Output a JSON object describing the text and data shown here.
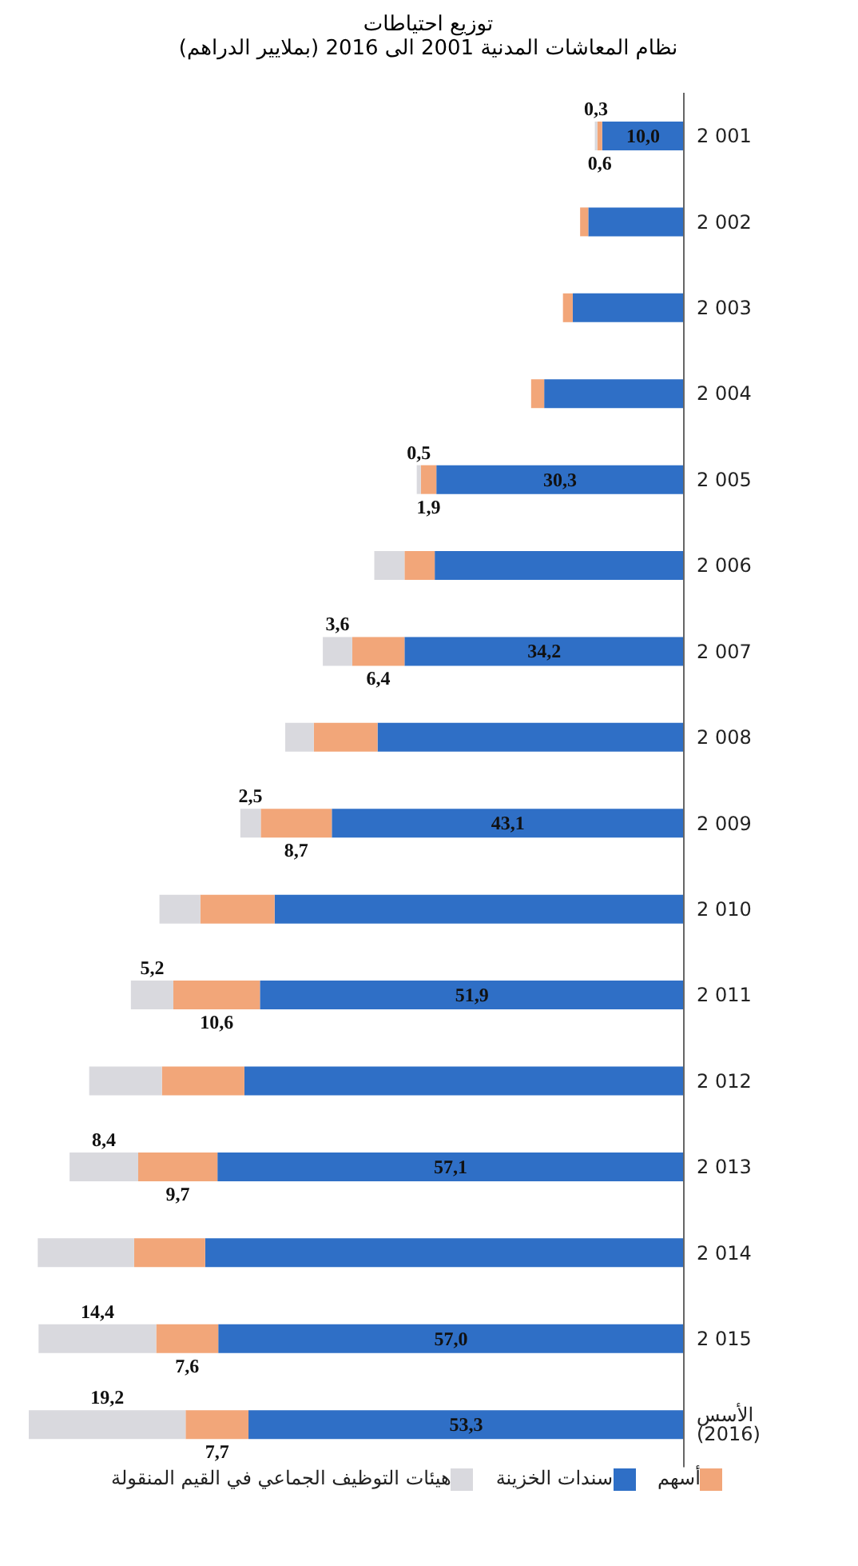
{
  "chart_data": {
    "type": "bar",
    "orientation": "horizontal",
    "stacked": true,
    "title": "توزيع احتياطات\nنظام المعاشات المدنية 2001 الى 2016 (بملايير الدراهم)",
    "categories": [
      "2 001",
      "2 002",
      "2 003",
      "2 004",
      "2 005",
      "2 006",
      "2 007",
      "2 008",
      "2 009",
      "2 010",
      "2 011",
      "2 012",
      "2 013",
      "2 014",
      "2 015",
      "الأسس (2016)"
    ],
    "series": [
      {
        "name": "سندات الخزينة",
        "color": "#2f6fc6",
        "values": [
          10.0,
          11.7,
          13.6,
          17.1,
          30.3,
          30.5,
          34.2,
          37.5,
          43.1,
          50.1,
          51.9,
          53.8,
          57.1,
          58.6,
          57.0,
          53.3
        ],
        "value_labels": [
          "10,0",
          null,
          null,
          null,
          "30,3",
          null,
          "34,2",
          null,
          "43,1",
          null,
          "51,9",
          null,
          "57,1",
          null,
          "57,0",
          "53,3"
        ]
      },
      {
        "name": "أسهم",
        "color": "#f2a679",
        "values": [
          0.6,
          1.0,
          1.2,
          1.6,
          1.9,
          3.7,
          6.4,
          7.8,
          8.7,
          9.1,
          10.6,
          10.1,
          9.7,
          8.7,
          7.6,
          7.7
        ],
        "value_labels": [
          "0,6",
          null,
          null,
          null,
          "1,9",
          null,
          "6,4",
          null,
          "8,7",
          null,
          "10,6",
          null,
          "9,7",
          null,
          "7,6",
          "7,7"
        ]
      },
      {
        "name": "هيئات التوظيف الجماعي في القيم المنقولة",
        "color": "#d9d9de",
        "values": [
          0.3,
          null,
          null,
          null,
          0.5,
          3.7,
          3.6,
          3.5,
          2.5,
          5.0,
          5.2,
          8.9,
          8.4,
          11.8,
          14.4,
          19.2
        ],
        "value_labels": [
          "0,3",
          null,
          null,
          null,
          "0,5",
          null,
          "3,6",
          null,
          "2,5",
          null,
          "5,2",
          null,
          "8,4",
          null,
          "14,4",
          "19,2"
        ]
      }
    ],
    "legend": "bottom"
  }
}
